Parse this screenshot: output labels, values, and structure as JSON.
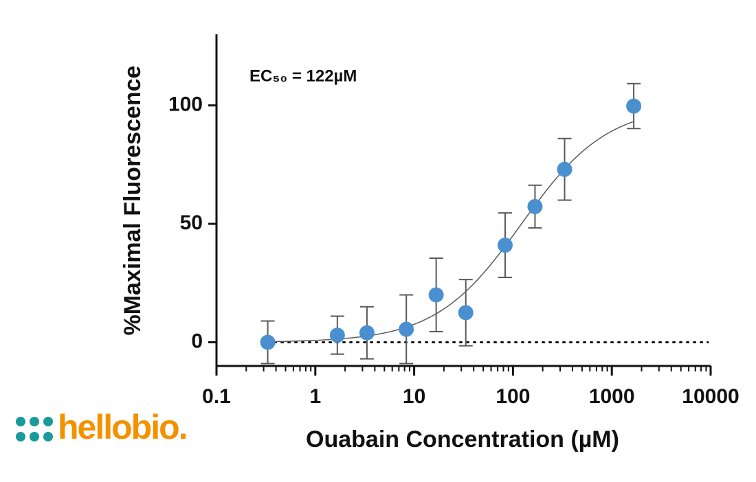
{
  "chart_data": {
    "type": "scatter",
    "x_label": "Ouabain Concentration (µM)",
    "y_label": "%Maximal Fluorescence",
    "annotation": "EC₅₀ = 122µM",
    "log_x": true,
    "xlim": [
      0.1,
      10000
    ],
    "xticks": [
      0.1,
      1,
      10,
      100,
      1000,
      10000
    ],
    "ylim": [
      -10,
      130
    ],
    "yticks": [
      0,
      50,
      100
    ],
    "reference_line": 0,
    "fit": {
      "bottom": 0,
      "top": 100,
      "ec50": 122,
      "hill": 1,
      "color": "#5a5a5a"
    },
    "series": [
      {
        "color": "#4a90d0",
        "error_color": "#5a5a5a",
        "x": [
          0.33,
          1.67,
          3.33,
          8.33,
          16.7,
          33.3,
          83.3,
          167,
          333,
          1667
        ],
        "values": [
          0,
          3,
          4,
          5.5,
          20,
          12.5,
          41,
          57.3,
          73,
          99.7
        ],
        "errors": [
          9,
          8,
          11,
          14.5,
          15.5,
          14,
          13.6,
          9,
          13,
          9.5
        ]
      }
    ]
  },
  "logo": "hellobio."
}
